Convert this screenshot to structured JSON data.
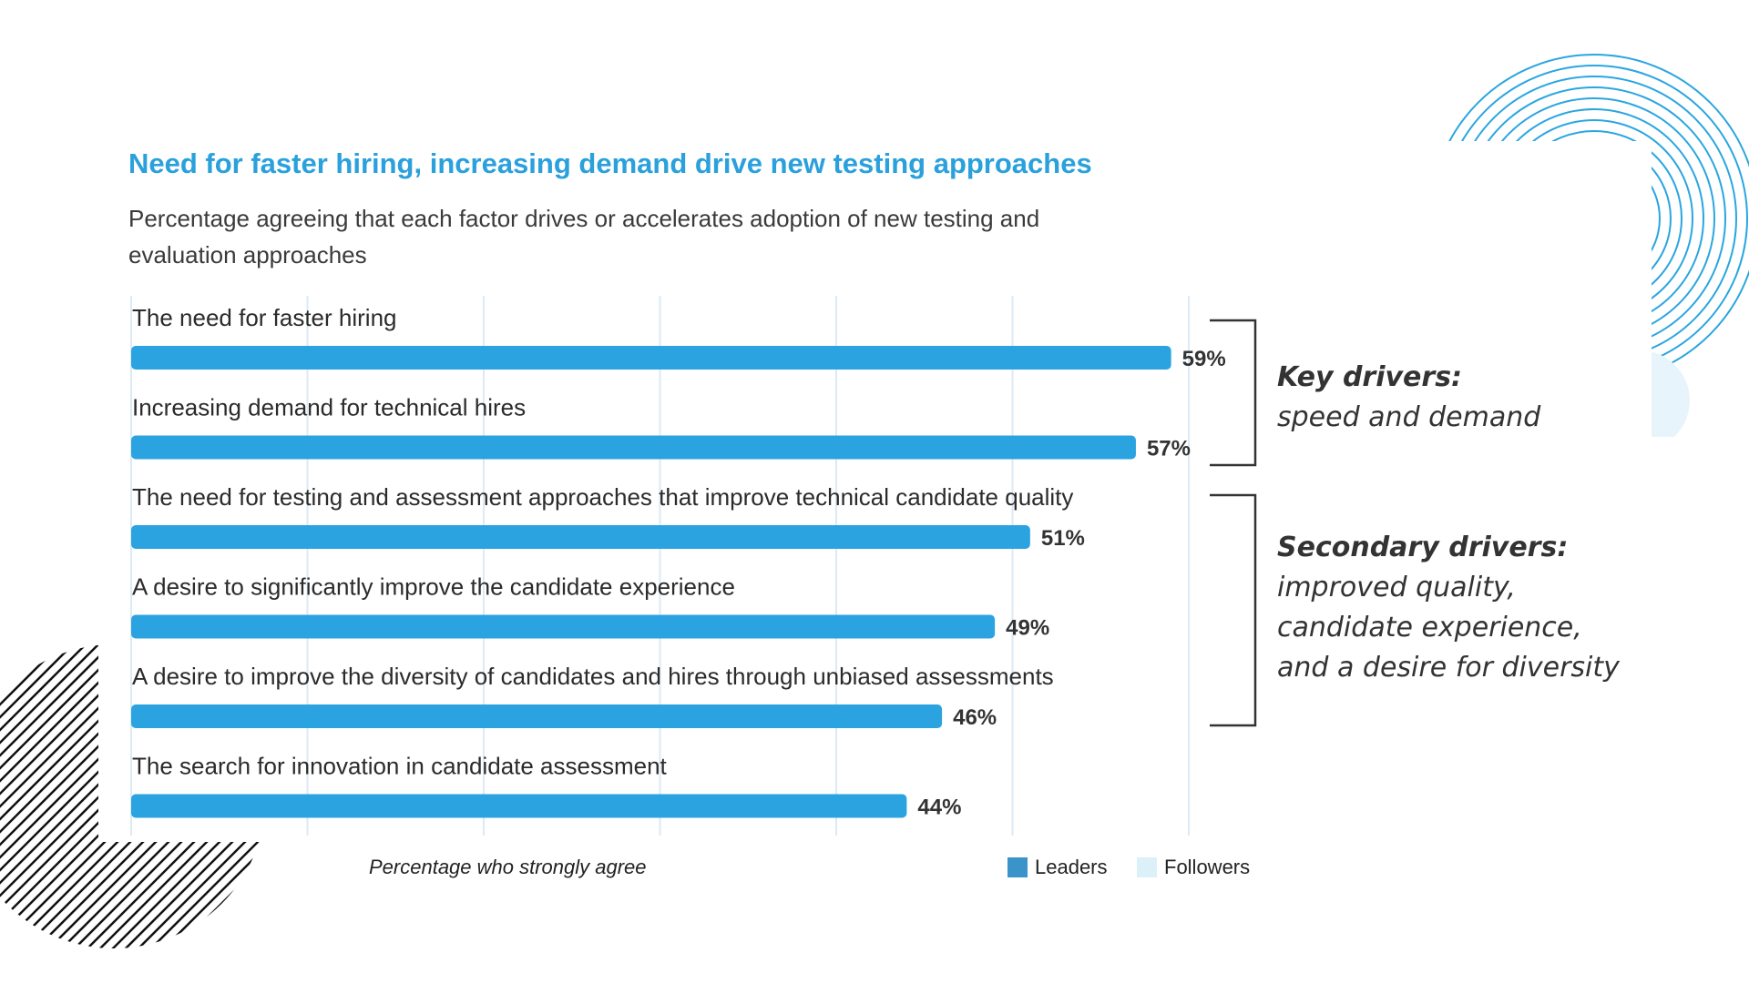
{
  "chart_data": {
    "type": "bar",
    "orientation": "horizontal",
    "title": "Need for faster hiring, increasing demand drive new testing approaches",
    "subtitle": "Percentage agreeing that each factor drives or accelerates adoption of new testing and evaluation approaches",
    "categories": [
      "The need for faster hiring",
      "Increasing demand for technical hires",
      "The need for testing and assessment approaches that improve technical candidate quality",
      "A desire to significantly improve the candidate experience",
      "A desire to improve the diversity of candidates and hires through unbiased assessments",
      "The search for innovation in candidate assessment"
    ],
    "values": [
      59,
      57,
      51,
      49,
      46,
      44
    ],
    "value_labels": [
      "59%",
      "57%",
      "51%",
      "49%",
      "46%",
      "44%"
    ],
    "xlim": [
      0,
      60
    ],
    "grid": true,
    "bar_color": "#2ba3e0",
    "footnote": "Percentage who strongly agree",
    "legend": [
      {
        "label": "Leaders",
        "color": "#3a93c9"
      },
      {
        "label": "Followers",
        "color": "#dcf0fa"
      }
    ],
    "legend_placement": "bottom-right",
    "annotations": [
      {
        "heading": "Key drivers:",
        "body": "speed and demand",
        "brackets_categories": [
          0,
          1
        ]
      },
      {
        "heading": "Secondary drivers:",
        "body": "improved quality,\ncandidate experience,\nand a desire for diversity",
        "brackets_categories": [
          2,
          3,
          4
        ]
      }
    ]
  }
}
